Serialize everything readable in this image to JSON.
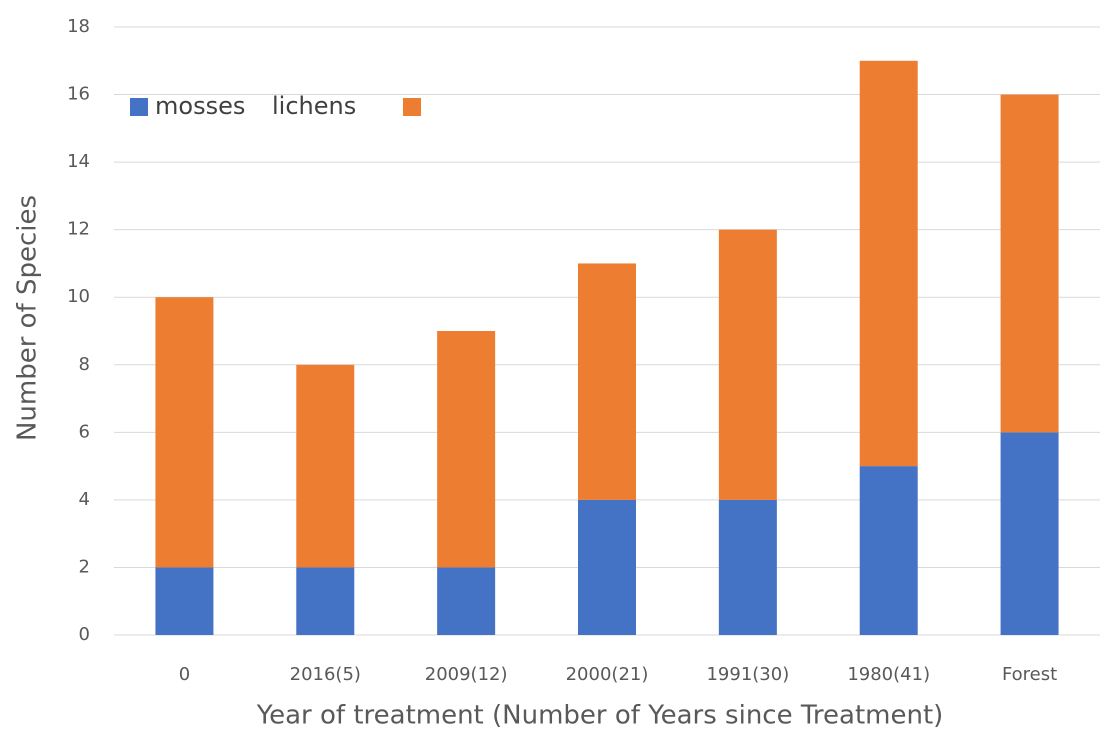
{
  "chart_data": {
    "type": "stacked_bar",
    "x_label": "Year of  treatment (Number of Years since Treatment)",
    "y_label": "Number of Species",
    "categories": [
      "0",
      "2016(5)",
      "2009(12)",
      "2000(21)",
      "1991(30)",
      "1980(41)",
      "Forest"
    ],
    "series": [
      {
        "name": "mosses",
        "color": "#4472c4",
        "values": [
          2,
          2,
          2,
          4,
          4,
          5,
          6
        ]
      },
      {
        "name": "lichens",
        "color": "#ed7d31",
        "values": [
          8,
          6,
          7,
          7,
          8,
          12,
          10
        ]
      }
    ],
    "ylim": [
      0,
      18
    ],
    "yticks": [
      0,
      2,
      4,
      6,
      8,
      10,
      12,
      14,
      16,
      18
    ],
    "grid": true,
    "legend": "upper left"
  }
}
